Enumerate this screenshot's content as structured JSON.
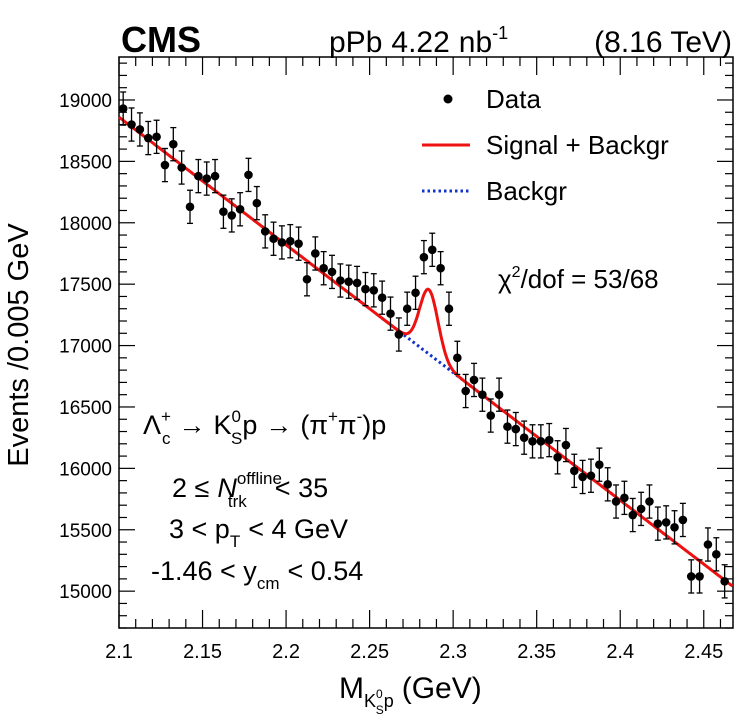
{
  "header": {
    "experiment": "CMS",
    "system": "pPb",
    "lumi_value": "4.22",
    "lumi_unit": "nb",
    "lumi_exp": "-1",
    "energy": "(8.16 TeV)"
  },
  "legend": {
    "data_label": "Data",
    "fit_label": "Signal + Backgr",
    "bkg_label": "Backgr"
  },
  "annotations": {
    "chi2_sup": "2",
    "chi2_text": "/dof = 53/68",
    "chi2_chi": "χ",
    "decay": {
      "lambda": "Λ",
      "lambda_sub": "c",
      "lambda_sup": "+",
      "arrow1": "→",
      "kaon": "K",
      "kaon_sub": "S",
      "kaon_sup": "0",
      "proton": "p",
      "arrow2": "→",
      "paren_open": "(",
      "pi1": "π",
      "pi1_sup": "+",
      "pi2": "π",
      "pi2_sup": "-",
      "paren_close": ")p"
    },
    "cut1": {
      "lhs": "2 ≤",
      "var": "N",
      "sub": "trk",
      "sup": "offline",
      "rhs": "< 35"
    },
    "cut2": {
      "lhs": "3 < p",
      "sub": "T",
      "rhs": "< 4 GeV"
    },
    "cut3": {
      "lhs": "-1.46 < y",
      "sub": "cm",
      "rhs": "< 0.54"
    }
  },
  "axes": {
    "ylabel": "Events /0.005 GeV",
    "xlabel_m": "M",
    "xlabel_sub_k": "K",
    "xlabel_subsub": "S",
    "xlabel_subsup": "0",
    "xlabel_sub_p": "p",
    "xlabel_unit": "(GeV)"
  },
  "chart_data": {
    "type": "scatter",
    "title": "CMS pPb 4.22 nb-1 (8.16 TeV)",
    "xlabel": "M_{K0S p} (GeV)",
    "ylabel": "Events /0.005 GeV",
    "xlim": [
      2.1,
      2.4675
    ],
    "ylim": [
      14700,
      19350
    ],
    "x_ticks": [
      2.1,
      2.15,
      2.2,
      2.25,
      2.3,
      2.35,
      2.4,
      2.45
    ],
    "x_tick_labels": [
      "2.1",
      "2.15",
      "2.2",
      "2.25",
      "2.3",
      "2.35",
      "2.4",
      "2.45"
    ],
    "y_ticks": [
      15000,
      15500,
      16000,
      16500,
      17000,
      17500,
      18000,
      18500,
      19000
    ],
    "y_tick_labels": [
      "15000",
      "15500",
      "16000",
      "16500",
      "17000",
      "17500",
      "18000",
      "18500",
      "19000"
    ],
    "series": [
      {
        "name": "Data",
        "style": "points with error bars",
        "color": "#000000",
        "x": [
          2.1025,
          2.1075,
          2.1125,
          2.1175,
          2.1225,
          2.1275,
          2.1325,
          2.1375,
          2.1425,
          2.1475,
          2.1525,
          2.1575,
          2.1625,
          2.1675,
          2.1725,
          2.1775,
          2.1825,
          2.1875,
          2.1925,
          2.1975,
          2.2025,
          2.2075,
          2.2125,
          2.2175,
          2.2225,
          2.2275,
          2.2325,
          2.2375,
          2.2425,
          2.2475,
          2.2525,
          2.2575,
          2.2625,
          2.2675,
          2.2725,
          2.2775,
          2.2825,
          2.2875,
          2.2925,
          2.2975,
          2.3025,
          2.3075,
          2.3125,
          2.3175,
          2.3225,
          2.3275,
          2.3325,
          2.3375,
          2.3425,
          2.3475,
          2.3525,
          2.3575,
          2.3625,
          2.3675,
          2.3725,
          2.3775,
          2.3825,
          2.3875,
          2.3925,
          2.3975,
          2.4025,
          2.4075,
          2.4125,
          2.4175,
          2.4225,
          2.4275,
          2.4325,
          2.4375,
          2.4425,
          2.4475,
          2.4525,
          2.4575,
          2.4625
        ],
        "y": [
          18930,
          18800,
          18760,
          18690,
          18700,
          18470,
          18640,
          18450,
          18130,
          18380,
          18360,
          18380,
          18090,
          18060,
          18110,
          18390,
          18160,
          17930,
          17870,
          17840,
          17850,
          17830,
          17540,
          17750,
          17630,
          17600,
          17530,
          17520,
          17510,
          17460,
          17450,
          17390,
          17260,
          17090,
          17300,
          17430,
          17720,
          17780,
          17630,
          17300,
          16900,
          16630,
          16720,
          16600,
          16430,
          16600,
          16340,
          16320,
          16250,
          16220,
          16220,
          16230,
          16090,
          16190,
          15980,
          15930,
          15940,
          16030,
          15870,
          15730,
          15760,
          15620,
          15670,
          15730,
          15550,
          15560,
          15520,
          15580,
          15120,
          15120,
          15380,
          15300,
          15080
        ],
        "yerr": 135
      },
      {
        "name": "Signal + Backgr",
        "style": "solid line",
        "color": "#ee1111",
        "model": "linear background + gaussian peak",
        "background_at_2.1": 18860,
        "background_slope_per_GeV": -10400,
        "peak_mean": 2.2855,
        "peak_sigma": 0.0055,
        "peak_amplitude": 525
      },
      {
        "name": "Backgr",
        "style": "dotted line",
        "color": "#1133cc",
        "x_range": [
          2.2575,
          2.3225
        ]
      }
    ]
  },
  "colors": {
    "data": "#000000",
    "fit": "#ee1111",
    "background": "#1133cc"
  }
}
